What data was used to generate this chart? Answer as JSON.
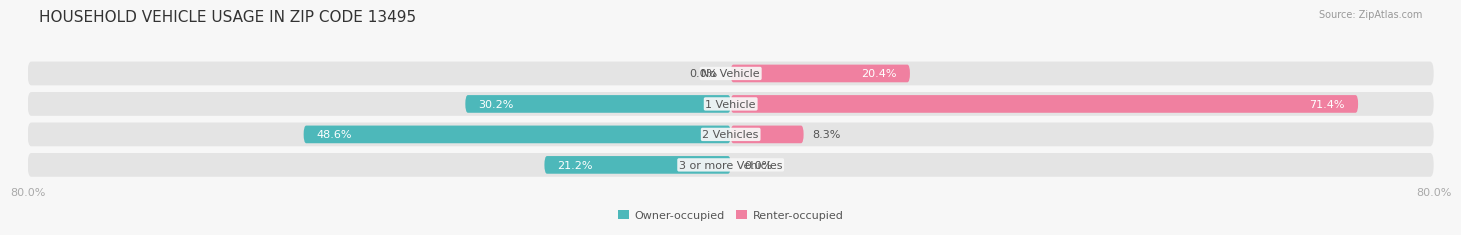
{
  "title": "HOUSEHOLD VEHICLE USAGE IN ZIP CODE 13495",
  "source": "Source: ZipAtlas.com",
  "categories": [
    "No Vehicle",
    "1 Vehicle",
    "2 Vehicles",
    "3 or more Vehicles"
  ],
  "owner_values": [
    0.0,
    30.2,
    48.6,
    21.2
  ],
  "renter_values": [
    20.4,
    71.4,
    8.3,
    0.0
  ],
  "owner_color": "#4db8ba",
  "renter_color": "#f080a0",
  "row_bg_color": "#e4e4e4",
  "owner_label": "Owner-occupied",
  "renter_label": "Renter-occupied",
  "x_min": -80.0,
  "x_max": 80.0,
  "x_tick_labels_left": "80.0%",
  "x_tick_labels_right": "80.0%",
  "title_fontsize": 11,
  "cat_fontsize": 8,
  "val_fontsize": 8,
  "axis_fontsize": 8,
  "source_fontsize": 7,
  "background_color": "#f7f7f7",
  "title_color": "#333333",
  "cat_label_color": "#555555",
  "axis_color": "#aaaaaa",
  "source_color": "#999999"
}
